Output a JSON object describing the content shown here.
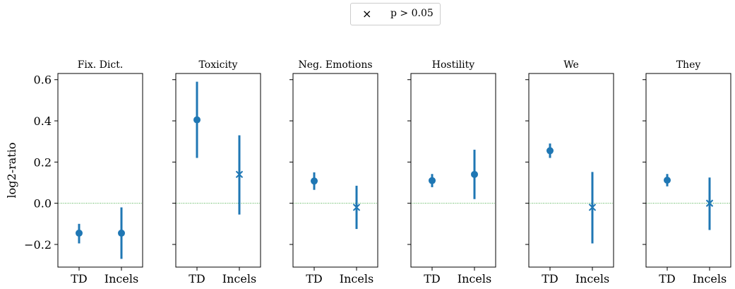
{
  "legend": {
    "marker_icon": "x-marker-icon",
    "marker_glyph": "×",
    "label": "p > 0.05"
  },
  "chart_data": {
    "type": "scatter",
    "kind": "point-with-error-bars",
    "ylabel": "log2-ratio",
    "ylim": [
      -0.31,
      0.63
    ],
    "yticks": [
      -0.2,
      0.0,
      0.2,
      0.4,
      0.6
    ],
    "ytick_labels": [
      "−0.2",
      "0.0",
      "0.2",
      "0.4",
      "0.6"
    ],
    "categories": [
      "TD",
      "Incels"
    ],
    "reference_line": {
      "y": 0.0,
      "color": "#2ca02c",
      "style": "dotted"
    },
    "marker_color": "#1f77b4",
    "legend_placement": "top-center",
    "grid": false,
    "panels": [
      {
        "title": "Fix. Dict.",
        "points": [
          {
            "category": "TD",
            "value": -0.145,
            "low": -0.195,
            "high": -0.1,
            "significant": true
          },
          {
            "category": "Incels",
            "value": -0.145,
            "low": -0.27,
            "high": -0.02,
            "significant": true
          }
        ]
      },
      {
        "title": "Toxicity",
        "points": [
          {
            "category": "TD",
            "value": 0.405,
            "low": 0.22,
            "high": 0.59,
            "significant": true
          },
          {
            "category": "Incels",
            "value": 0.14,
            "low": -0.055,
            "high": 0.33,
            "significant": false
          }
        ]
      },
      {
        "title": "Neg. Emotions",
        "points": [
          {
            "category": "TD",
            "value": 0.108,
            "low": 0.065,
            "high": 0.15,
            "significant": true
          },
          {
            "category": "Incels",
            "value": -0.02,
            "low": -0.125,
            "high": 0.085,
            "significant": false
          }
        ]
      },
      {
        "title": "Hostility",
        "points": [
          {
            "category": "TD",
            "value": 0.11,
            "low": 0.078,
            "high": 0.142,
            "significant": true
          },
          {
            "category": "Incels",
            "value": 0.14,
            "low": 0.02,
            "high": 0.26,
            "significant": true
          }
        ]
      },
      {
        "title": "We",
        "points": [
          {
            "category": "TD",
            "value": 0.255,
            "low": 0.22,
            "high": 0.29,
            "significant": true
          },
          {
            "category": "Incels",
            "value": -0.02,
            "low": -0.195,
            "high": 0.152,
            "significant": false
          }
        ]
      },
      {
        "title": "They",
        "points": [
          {
            "category": "TD",
            "value": 0.112,
            "low": 0.082,
            "high": 0.142,
            "significant": true
          },
          {
            "category": "Incels",
            "value": 0.0,
            "low": -0.13,
            "high": 0.125,
            "significant": false
          }
        ]
      }
    ]
  }
}
